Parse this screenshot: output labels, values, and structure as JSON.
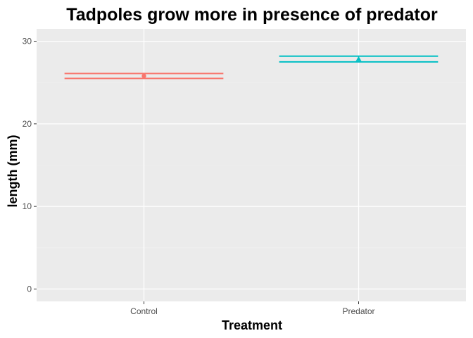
{
  "chart_data": {
    "type": "scatter",
    "title": "Tadpoles grow more in presence of predator",
    "xlabel": "Treatment",
    "ylabel": "length (mm)",
    "categories": [
      "Control",
      "Predator"
    ],
    "ylim": [
      -1.5,
      31.5
    ],
    "yticks": [
      0,
      10,
      20,
      30
    ],
    "grid": true,
    "legend": "none",
    "series": [
      {
        "category": "Control",
        "mean": 25.8,
        "lower": 25.5,
        "upper": 26.1,
        "marker": "circle",
        "color": "#F8766D"
      },
      {
        "category": "Predator",
        "mean": 27.85,
        "lower": 27.5,
        "upper": 28.2,
        "marker": "triangle",
        "color": "#00BFC4"
      }
    ]
  },
  "colors": {
    "panel_background": "#EBEBEB",
    "grid_major": "#FFFFFF",
    "grid_minor": "#F2F2F2",
    "tick": "#333333"
  }
}
